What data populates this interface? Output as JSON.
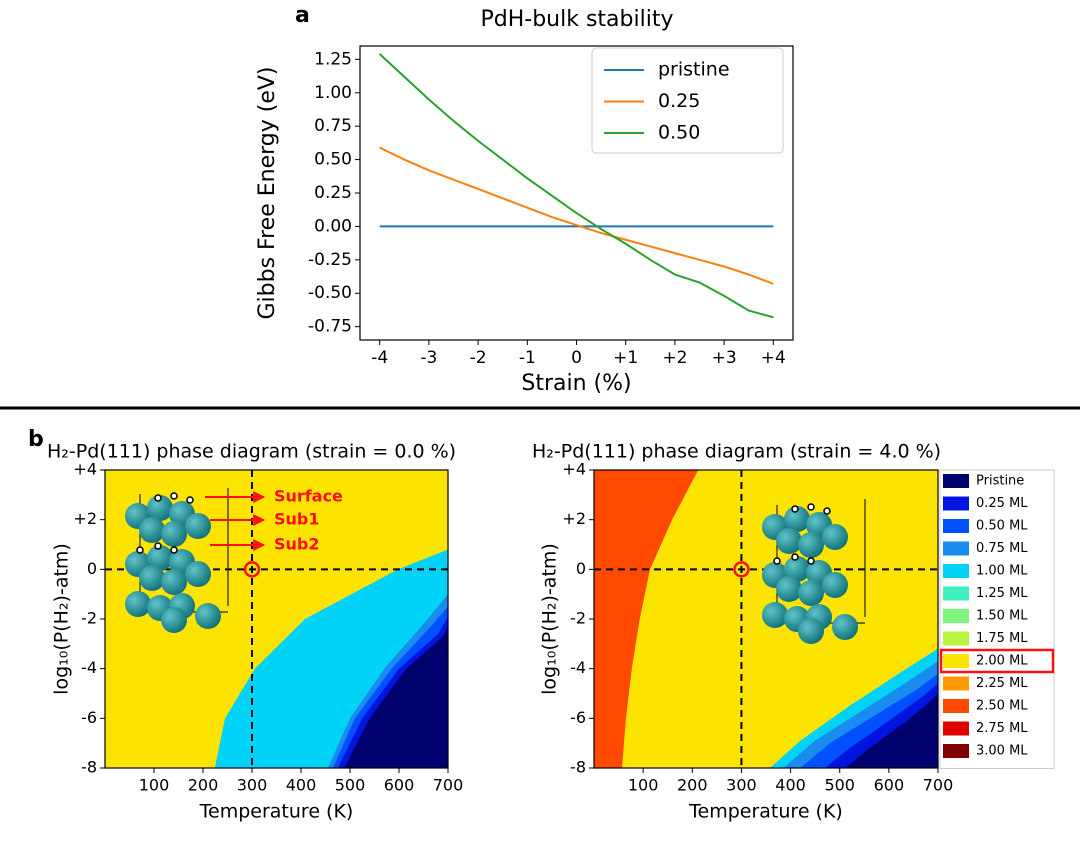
{
  "chart_data": [
    {
      "type": "line",
      "panel": "a",
      "title": "PdH-bulk stability",
      "xlabel": "Strain (%)",
      "ylabel": "Gibbs Free Energy (eV)",
      "x": [
        -4,
        -3.5,
        -3,
        -2.5,
        -2,
        -1.5,
        -1,
        -0.5,
        0,
        0.5,
        1,
        1.5,
        2,
        2.5,
        3,
        3.5,
        4
      ],
      "xlim": [
        -4.4,
        4.4
      ],
      "ylim": [
        -0.85,
        1.35
      ],
      "xticks": [
        -4,
        -3,
        -2,
        -1,
        0,
        {
          "value": 1,
          "label": "+1"
        },
        {
          "value": 2,
          "label": "+2"
        },
        {
          "value": 3,
          "label": "+3"
        },
        {
          "value": 4,
          "label": "+4"
        }
      ],
      "yticks": [
        1.25,
        {
          "value": 1,
          "label": "1.00"
        },
        0.75,
        {
          "value": 0.5,
          "label": "0.50"
        },
        0.25,
        {
          "value": 0,
          "label": "0.00"
        },
        -0.25,
        {
          "value": -0.5,
          "label": "-0.50"
        },
        -0.75
      ],
      "legend": "upper right",
      "series": [
        {
          "name": "pristine",
          "color": "#1f77b4",
          "values": [
            0,
            0,
            0,
            0,
            0,
            0,
            0,
            0,
            0,
            0,
            0,
            0,
            0,
            0,
            0,
            0,
            0
          ]
        },
        {
          "name": "0.25",
          "color": "#ff7f0e",
          "values": [
            0.59,
            0.5,
            0.42,
            0.35,
            0.28,
            0.21,
            0.14,
            0.07,
            0.01,
            -0.05,
            -0.1,
            -0.15,
            -0.2,
            -0.25,
            -0.3,
            -0.36,
            -0.43
          ]
        },
        {
          "name": "0.50",
          "color": "#2ca02c",
          "values": [
            1.29,
            1.12,
            0.95,
            0.79,
            0.64,
            0.5,
            0.36,
            0.23,
            0.1,
            -0.02,
            -0.13,
            -0.25,
            -0.36,
            -0.42,
            -0.52,
            -0.63,
            -0.68
          ]
        }
      ]
    },
    {
      "type": "phase",
      "panel": "b",
      "title": "H₂-Pd(111) phase diagram (strain = 0.0 %)",
      "xlabel": "Temperature (K)",
      "ylabel": "log₁₀(P(H₂)-atm)",
      "xlim": [
        0,
        700
      ],
      "ylim": [
        -8,
        4
      ],
      "xticks": [
        100,
        200,
        300,
        400,
        500,
        600,
        700
      ],
      "yticks": [
        {
          "value": 4,
          "label": "+4"
        },
        {
          "value": 2,
          "label": "+2"
        },
        0,
        -2,
        -4,
        -6,
        -8
      ],
      "vline": 300,
      "hline": 0,
      "marker": [
        300,
        0
      ],
      "annotations": [
        "Surface",
        "Sub1",
        "Sub2"
      ],
      "regions": [
        {
          "color": "#fde400",
          "x": [
            0,
            700,
            700,
            0
          ],
          "y": [
            -8,
            -8,
            4,
            4
          ]
        },
        {
          "color": "#00d2f8",
          "x": [
            224,
            245,
            306,
            408,
            598,
            700,
            700
          ],
          "y": [
            -8,
            -6,
            -4,
            -2,
            0,
            0.8,
            -8
          ]
        },
        {
          "color": "#1a8cf0",
          "x": [
            455,
            500,
            570,
            650,
            700,
            700
          ],
          "y": [
            -8,
            -6,
            -4,
            -2.2,
            -1,
            -8
          ]
        },
        {
          "color": "#0050ff",
          "x": [
            465,
            510,
            585,
            665,
            700,
            700
          ],
          "y": [
            -8,
            -6,
            -4,
            -2.3,
            -1.5,
            -8
          ]
        },
        {
          "color": "#0014e0",
          "x": [
            475,
            525,
            600,
            680,
            700,
            700
          ],
          "y": [
            -8,
            -6,
            -4,
            -2.6,
            -1.9,
            -8
          ]
        },
        {
          "color": "#00006e",
          "x": [
            488,
            540,
            615,
            690,
            700,
            700
          ],
          "y": [
            -8,
            -6,
            -4,
            -2.7,
            -2.3,
            -8
          ]
        }
      ]
    },
    {
      "type": "phase",
      "title": "H₂-Pd(111) phase diagram (strain = 4.0 %)",
      "xlabel": "Temperature (K)",
      "ylabel": "log₁₀(P(H₂)-atm)",
      "xlim": [
        0,
        700
      ],
      "ylim": [
        -8,
        4
      ],
      "xticks": [
        100,
        200,
        300,
        400,
        500,
        600,
        700
      ],
      "yticks": [
        {
          "value": 4,
          "label": "+4"
        },
        {
          "value": 2,
          "label": "+2"
        },
        0,
        -2,
        -4,
        -6,
        -8
      ],
      "vline": 300,
      "hline": 0,
      "marker": [
        300,
        0
      ],
      "regions": [
        {
          "color": "#fde400",
          "x": [
            0,
            700,
            700,
            0
          ],
          "y": [
            -8,
            -8,
            4,
            4
          ]
        },
        {
          "color": "#ff4a00",
          "x": [
            57,
            65,
            77,
            93,
            114,
            159,
            212,
            0,
            0
          ],
          "y": [
            -8,
            -6,
            -4,
            -2,
            0,
            2,
            4,
            4,
            -8
          ]
        },
        {
          "color": "#00d2f8",
          "x": [
            358,
            420,
            520,
            620,
            700,
            700
          ],
          "y": [
            -8,
            -6.9,
            -5.5,
            -4.2,
            -3.2,
            -8
          ]
        },
        {
          "color": "#1a8cf0",
          "x": [
            385,
            450,
            545,
            640,
            700,
            700
          ],
          "y": [
            -8,
            -6.9,
            -5.7,
            -4.5,
            -3.7,
            -8
          ]
        },
        {
          "color": "#0050ff",
          "x": [
            420,
            480,
            570,
            660,
            700,
            700
          ],
          "y": [
            -8,
            -7,
            -5.9,
            -4.8,
            -4.2,
            -8
          ]
        },
        {
          "color": "#0014e0",
          "x": [
            470,
            520,
            600,
            670,
            700,
            700
          ],
          "y": [
            -8,
            -7.2,
            -6.1,
            -5.1,
            -4.6,
            -8
          ]
        },
        {
          "color": "#00006e",
          "x": [
            511,
            560,
            630,
            680,
            700,
            700
          ],
          "y": [
            -8,
            -7.2,
            -6.2,
            -5.4,
            -5,
            -8
          ]
        }
      ],
      "legend": [
        {
          "name": "Pristine",
          "color": "#00006e"
        },
        {
          "name": "0.25 ML",
          "color": "#0014e0"
        },
        {
          "name": "0.50 ML",
          "color": "#0050ff"
        },
        {
          "name": "0.75 ML",
          "color": "#1a8cf0"
        },
        {
          "name": "1.00 ML",
          "color": "#00d2f8"
        },
        {
          "name": "1.25 ML",
          "color": "#40f0c0"
        },
        {
          "name": "1.50 ML",
          "color": "#7cf57c"
        },
        {
          "name": "1.75 ML",
          "color": "#b8f540"
        },
        {
          "name": "2.00 ML",
          "color": "#fde400"
        },
        {
          "name": "2.25 ML",
          "color": "#ff9a00"
        },
        {
          "name": "2.50 ML",
          "color": "#ff4a00"
        },
        {
          "name": "2.75 ML",
          "color": "#e00000"
        },
        {
          "name": "3.00 ML",
          "color": "#800000"
        }
      ],
      "legend_highlight": 8
    }
  ]
}
